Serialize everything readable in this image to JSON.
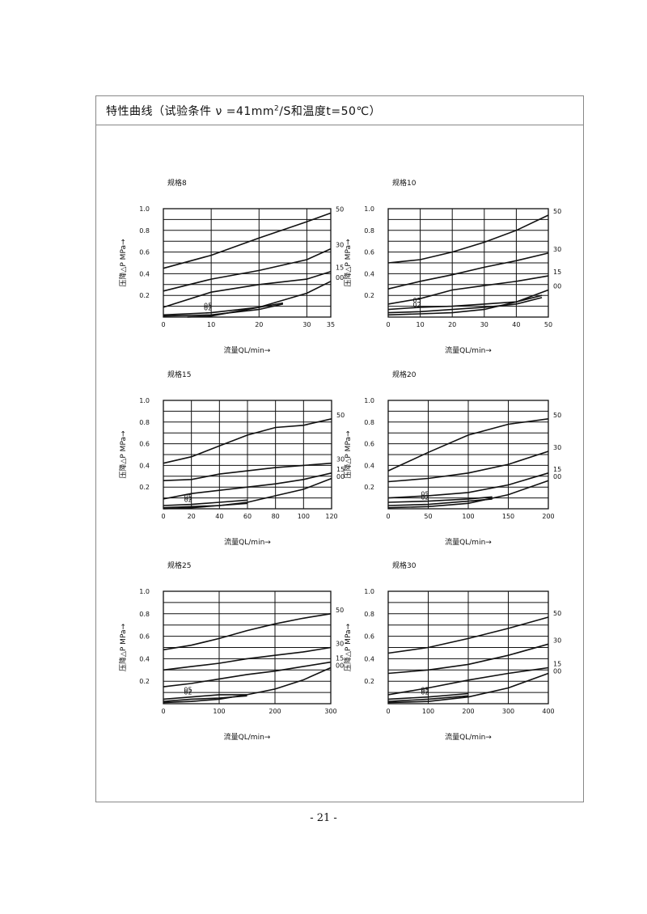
{
  "header": {
    "title_prefix": "特性曲线（试验条件",
    "title_nu": "ν =41mm",
    "title_sup": "2",
    "title_suffix": "/S和温度t=50℃）"
  },
  "page_number": "- 21 -",
  "chart_data": [
    {
      "type": "line",
      "spec_label": "规格8",
      "ylabel": "压降△P MPa→",
      "xlabel": "流量QL/min→",
      "xlim": [
        0,
        35
      ],
      "ylim": [
        0,
        1.0
      ],
      "xticks": [
        0,
        10,
        20,
        30,
        35
      ],
      "yticks": [
        0.2,
        0.4,
        0.6,
        0.8,
        1.0
      ],
      "ytick_labels": [
        "0.2",
        "0.4",
        "0.6",
        "0.8",
        "1.0"
      ],
      "series": [
        {
          "name": "50",
          "x": [
            0,
            10,
            20,
            30,
            35
          ],
          "y": [
            0.45,
            0.57,
            0.73,
            0.88,
            0.96
          ]
        },
        {
          "name": "30",
          "x": [
            0,
            10,
            20,
            30,
            35
          ],
          "y": [
            0.24,
            0.35,
            0.43,
            0.53,
            0.63
          ]
        },
        {
          "name": "15",
          "x": [
            0,
            10,
            20,
            30,
            35
          ],
          "y": [
            0.09,
            0.23,
            0.3,
            0.35,
            0.42
          ]
        },
        {
          "name": "00",
          "x": [
            5,
            10,
            20,
            30,
            35
          ],
          "y": [
            0.0,
            0.01,
            0.09,
            0.22,
            0.33
          ]
        },
        {
          "name": "05",
          "x": [
            0,
            10,
            20,
            25
          ],
          "y": [
            0.02,
            0.04,
            0.09,
            0.13
          ]
        },
        {
          "name": "02",
          "x": [
            0,
            10,
            20,
            25
          ],
          "y": [
            0.01,
            0.02,
            0.07,
            0.12
          ]
        }
      ]
    },
    {
      "type": "line",
      "spec_label": "规格10",
      "ylabel": "压降△P MPa→",
      "xlabel": "流量QL/min→",
      "xlim": [
        0,
        50
      ],
      "ylim": [
        0,
        1.0
      ],
      "xticks": [
        0,
        10,
        20,
        30,
        40,
        50
      ],
      "yticks": [
        0.2,
        0.4,
        0.6,
        0.8,
        1.0
      ],
      "ytick_labels": [
        "0.2",
        "0.4",
        "0.6",
        "0.8",
        "1.0"
      ],
      "series": [
        {
          "name": "50",
          "x": [
            0,
            10,
            20,
            30,
            40,
            50
          ],
          "y": [
            0.5,
            0.53,
            0.6,
            0.69,
            0.8,
            0.94
          ]
        },
        {
          "name": "30",
          "x": [
            0,
            10,
            20,
            30,
            40,
            50
          ],
          "y": [
            0.26,
            0.33,
            0.39,
            0.46,
            0.52,
            0.59
          ]
        },
        {
          "name": "15",
          "x": [
            0,
            10,
            20,
            30,
            40,
            50
          ],
          "y": [
            0.12,
            0.17,
            0.25,
            0.29,
            0.33,
            0.38
          ]
        },
        {
          "name": "00",
          "x": [
            0,
            10,
            20,
            30,
            40,
            50
          ],
          "y": [
            0.02,
            0.03,
            0.04,
            0.07,
            0.14,
            0.25
          ]
        },
        {
          "name": "05",
          "x": [
            0,
            10,
            20,
            30,
            40,
            48
          ],
          "y": [
            0.07,
            0.09,
            0.1,
            0.12,
            0.14,
            0.2
          ]
        },
        {
          "name": "02",
          "x": [
            0,
            10,
            20,
            30,
            40,
            48
          ],
          "y": [
            0.04,
            0.05,
            0.07,
            0.09,
            0.12,
            0.18
          ]
        }
      ]
    },
    {
      "type": "line",
      "spec_label": "规格15",
      "ylabel": "压降△P MPa→",
      "xlabel": "流量QL/min→",
      "xlim": [
        0,
        120
      ],
      "ylim": [
        0,
        1.0
      ],
      "xticks": [
        0,
        20,
        40,
        60,
        80,
        100,
        120
      ],
      "yticks": [
        0.2,
        0.4,
        0.6,
        0.8,
        1.0
      ],
      "ytick_labels": [
        "0.2",
        "0.4",
        "0.6",
        "0.8",
        "1.0"
      ],
      "series": [
        {
          "name": "50",
          "x": [
            0,
            20,
            40,
            60,
            80,
            100,
            120
          ],
          "y": [
            0.42,
            0.48,
            0.58,
            0.68,
            0.75,
            0.77,
            0.83
          ]
        },
        {
          "name": "30",
          "x": [
            0,
            20,
            40,
            60,
            80,
            100,
            120
          ],
          "y": [
            0.26,
            0.27,
            0.32,
            0.35,
            0.38,
            0.4,
            0.42
          ]
        },
        {
          "name": "15",
          "x": [
            0,
            20,
            40,
            60,
            80,
            100,
            120
          ],
          "y": [
            0.09,
            0.14,
            0.17,
            0.2,
            0.23,
            0.27,
            0.33
          ]
        },
        {
          "name": "00",
          "x": [
            0,
            20,
            40,
            60,
            80,
            100,
            120
          ],
          "y": [
            0.0,
            0.01,
            0.03,
            0.06,
            0.12,
            0.18,
            0.28
          ]
        },
        {
          "name": "05",
          "x": [
            0,
            20,
            40,
            60
          ],
          "y": [
            0.03,
            0.04,
            0.06,
            0.08
          ]
        },
        {
          "name": "02",
          "x": [
            0,
            20,
            40,
            60
          ],
          "y": [
            0.01,
            0.02,
            0.03,
            0.05
          ]
        }
      ]
    },
    {
      "type": "line",
      "spec_label": "规格20",
      "ylabel": "压降△P MPa→",
      "xlabel": "流量QL/min→",
      "xlim": [
        0,
        200
      ],
      "ylim": [
        0,
        1.0
      ],
      "xticks": [
        0,
        50,
        100,
        150,
        200
      ],
      "yticks": [
        0.2,
        0.4,
        0.6,
        0.8,
        1.0
      ],
      "ytick_labels": [
        "0.2",
        "0.4",
        "0.6",
        "0.8",
        "1.0"
      ],
      "series": [
        {
          "name": "50",
          "x": [
            0,
            50,
            100,
            150,
            200
          ],
          "y": [
            0.35,
            0.52,
            0.68,
            0.78,
            0.83
          ]
        },
        {
          "name": "30",
          "x": [
            0,
            50,
            100,
            150,
            200
          ],
          "y": [
            0.25,
            0.28,
            0.33,
            0.41,
            0.53
          ]
        },
        {
          "name": "15",
          "x": [
            0,
            50,
            100,
            150,
            200
          ],
          "y": [
            0.1,
            0.12,
            0.15,
            0.22,
            0.33
          ]
        },
        {
          "name": "00",
          "x": [
            0,
            50,
            100,
            150,
            200
          ],
          "y": [
            0.01,
            0.02,
            0.05,
            0.13,
            0.26
          ]
        },
        {
          "name": "05",
          "x": [
            0,
            50,
            100,
            130
          ],
          "y": [
            0.06,
            0.07,
            0.09,
            0.11
          ]
        },
        {
          "name": "02",
          "x": [
            0,
            50,
            100,
            130
          ],
          "y": [
            0.03,
            0.04,
            0.07,
            0.09
          ]
        }
      ]
    },
    {
      "type": "line",
      "spec_label": "规格25",
      "ylabel": "压降△P MPa→",
      "xlabel": "流量QL/min→",
      "xlim": [
        0,
        300
      ],
      "ylim": [
        0,
        1.0
      ],
      "xticks": [
        0,
        100,
        200,
        300
      ],
      "yticks": [
        0.2,
        0.4,
        0.6,
        0.8,
        1.0
      ],
      "ytick_labels": [
        "0.2",
        "0.4",
        "0.6",
        "0.8",
        "1.0"
      ],
      "series": [
        {
          "name": "50",
          "x": [
            0,
            50,
            100,
            150,
            200,
            250,
            300
          ],
          "y": [
            0.48,
            0.52,
            0.58,
            0.65,
            0.71,
            0.76,
            0.8
          ]
        },
        {
          "name": "30",
          "x": [
            0,
            50,
            100,
            150,
            200,
            250,
            300
          ],
          "y": [
            0.3,
            0.33,
            0.36,
            0.4,
            0.43,
            0.46,
            0.5
          ]
        },
        {
          "name": "15",
          "x": [
            0,
            50,
            100,
            150,
            200,
            250,
            300
          ],
          "y": [
            0.15,
            0.18,
            0.22,
            0.26,
            0.29,
            0.33,
            0.37
          ]
        },
        {
          "name": "00",
          "x": [
            0,
            50,
            100,
            150,
            200,
            250,
            300
          ],
          "y": [
            0.01,
            0.02,
            0.04,
            0.08,
            0.13,
            0.21,
            0.32
          ]
        },
        {
          "name": "05",
          "x": [
            0,
            50,
            100,
            150
          ],
          "y": [
            0.04,
            0.06,
            0.08,
            0.08
          ]
        },
        {
          "name": "02",
          "x": [
            0,
            50,
            100,
            150
          ],
          "y": [
            0.02,
            0.04,
            0.05,
            0.07
          ]
        }
      ]
    },
    {
      "type": "line",
      "spec_label": "规格30",
      "ylabel": "压降△P MPa→",
      "xlabel": "流量QL/min→",
      "xlim": [
        0,
        400
      ],
      "ylim": [
        0,
        1.0
      ],
      "xticks": [
        0,
        100,
        200,
        300,
        400
      ],
      "yticks": [
        0.2,
        0.4,
        0.6,
        0.8,
        1.0
      ],
      "ytick_labels": [
        "0.2",
        "0.4",
        "0.6",
        "0.8",
        "1.0"
      ],
      "series": [
        {
          "name": "50",
          "x": [
            0,
            100,
            200,
            300,
            400
          ],
          "y": [
            0.45,
            0.5,
            0.58,
            0.67,
            0.77
          ]
        },
        {
          "name": "30",
          "x": [
            0,
            100,
            200,
            300,
            400
          ],
          "y": [
            0.27,
            0.3,
            0.35,
            0.43,
            0.53
          ]
        },
        {
          "name": "15",
          "x": [
            0,
            100,
            200,
            300,
            400
          ],
          "y": [
            0.08,
            0.14,
            0.21,
            0.27,
            0.32
          ]
        },
        {
          "name": "00",
          "x": [
            0,
            100,
            200,
            300,
            400
          ],
          "y": [
            0.01,
            0.02,
            0.06,
            0.14,
            0.27
          ]
        },
        {
          "name": "05",
          "x": [
            0,
            100,
            200
          ],
          "y": [
            0.04,
            0.06,
            0.09
          ]
        },
        {
          "name": "02",
          "x": [
            0,
            100,
            200
          ],
          "y": [
            0.02,
            0.04,
            0.07
          ]
        }
      ]
    }
  ]
}
